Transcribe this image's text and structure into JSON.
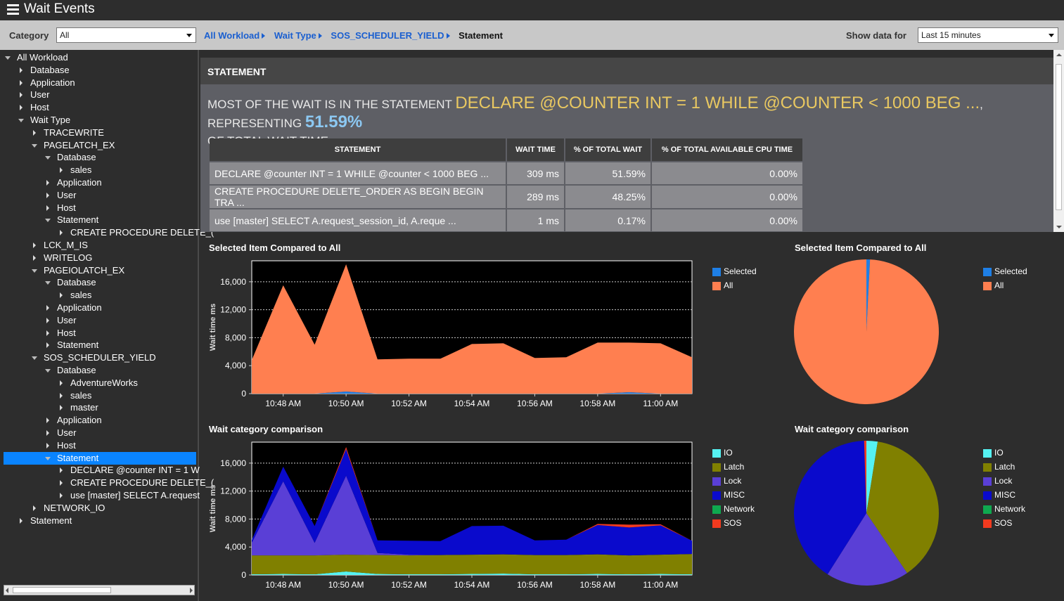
{
  "app": {
    "title": "Wait Events"
  },
  "toolbar": {
    "category_label": "Category",
    "category_value": "All",
    "show_data_label": "Show data for",
    "show_data_value": "Last 15 minutes"
  },
  "breadcrumb": {
    "items": [
      "All Workload",
      "Wait Type",
      "SOS_SCHEDULER_YIELD"
    ],
    "current": "Statement"
  },
  "tree": [
    {
      "label": "All Workload",
      "level": 0,
      "state": "expanded"
    },
    {
      "label": "Database",
      "level": 1,
      "state": "collapsed"
    },
    {
      "label": "Application",
      "level": 1,
      "state": "collapsed"
    },
    {
      "label": "User",
      "level": 1,
      "state": "collapsed"
    },
    {
      "label": "Host",
      "level": 1,
      "state": "collapsed"
    },
    {
      "label": "Wait Type",
      "level": 1,
      "state": "expanded"
    },
    {
      "label": "TRACEWRITE",
      "level": 2,
      "state": "collapsed"
    },
    {
      "label": "PAGELATCH_EX",
      "level": 2,
      "state": "expanded"
    },
    {
      "label": "Database",
      "level": 3,
      "state": "expanded"
    },
    {
      "label": "sales",
      "level": 4,
      "state": "collapsed"
    },
    {
      "label": "Application",
      "level": 3,
      "state": "collapsed"
    },
    {
      "label": "User",
      "level": 3,
      "state": "collapsed"
    },
    {
      "label": "Host",
      "level": 3,
      "state": "collapsed"
    },
    {
      "label": "Statement",
      "level": 3,
      "state": "expanded"
    },
    {
      "label": "CREATE PROCEDURE DELETE_(",
      "level": 4,
      "state": "collapsed"
    },
    {
      "label": "LCK_M_IS",
      "level": 2,
      "state": "collapsed"
    },
    {
      "label": "WRITELOG",
      "level": 2,
      "state": "collapsed"
    },
    {
      "label": "PAGEIOLATCH_EX",
      "level": 2,
      "state": "expanded"
    },
    {
      "label": "Database",
      "level": 3,
      "state": "expanded"
    },
    {
      "label": "sales",
      "level": 4,
      "state": "collapsed"
    },
    {
      "label": "Application",
      "level": 3,
      "state": "collapsed"
    },
    {
      "label": "User",
      "level": 3,
      "state": "collapsed"
    },
    {
      "label": "Host",
      "level": 3,
      "state": "collapsed"
    },
    {
      "label": "Statement",
      "level": 3,
      "state": "collapsed"
    },
    {
      "label": "SOS_SCHEDULER_YIELD",
      "level": 2,
      "state": "expanded"
    },
    {
      "label": "Database",
      "level": 3,
      "state": "expanded"
    },
    {
      "label": "AdventureWorks",
      "level": 4,
      "state": "collapsed"
    },
    {
      "label": "sales",
      "level": 4,
      "state": "collapsed"
    },
    {
      "label": "master",
      "level": 4,
      "state": "collapsed"
    },
    {
      "label": "Application",
      "level": 3,
      "state": "collapsed"
    },
    {
      "label": "User",
      "level": 3,
      "state": "collapsed"
    },
    {
      "label": "Host",
      "level": 3,
      "state": "collapsed"
    },
    {
      "label": "Statement",
      "level": 3,
      "state": "expanded",
      "selected": true
    },
    {
      "label": "DECLARE @counter INT = 1 W",
      "level": 4,
      "state": "collapsed"
    },
    {
      "label": "CREATE PROCEDURE DELETE_(",
      "level": 4,
      "state": "collapsed"
    },
    {
      "label": "use [master] SELECT  A.request",
      "level": 4,
      "state": "collapsed"
    },
    {
      "label": "NETWORK_IO",
      "level": 2,
      "state": "collapsed"
    },
    {
      "label": "Statement",
      "level": 1,
      "state": "collapsed"
    }
  ],
  "statement_panel": {
    "header": "STATEMENT",
    "summary_prefix": "MOST OF THE WAIT IS IN THE STATEMENT ",
    "summary_statement": "DECLARE @COUNTER INT = 1 WHILE @COUNTER < 1000 BEG ...",
    "summary_mid": ", REPRESENTING ",
    "summary_pct": "51.59%",
    "summary_suffix": "OF TOTAL WAIT TIME.",
    "columns": [
      "STATEMENT",
      "WAIT TIME",
      "% OF TOTAL WAIT",
      "% OF TOTAL AVAILABLE CPU TIME"
    ],
    "rows": [
      [
        "DECLARE @counter INT = 1 WHILE @counter < 1000 BEG ...",
        "309 ms",
        "51.59%",
        "0.00%"
      ],
      [
        "CREATE PROCEDURE DELETE_ORDER AS BEGIN BEGIN TRA ...",
        "289 ms",
        "48.25%",
        "0.00%"
      ],
      [
        "use [master] SELECT A.request_session_id, A.reque ...",
        "1 ms",
        "0.17%",
        "0.00%"
      ]
    ]
  },
  "colors": {
    "selected": "#1e7fe6",
    "all": "#ff7f50",
    "io": "#55f2f2",
    "latch": "#808000",
    "lock": "#5a3fd6",
    "misc": "#0a0acc",
    "network": "#0fa84f",
    "sos": "#f23a1f"
  },
  "chart_data": [
    {
      "type": "area",
      "title": "Selected Item Compared to All",
      "ylabel": "Wait time ms",
      "ylim": [
        0,
        19000
      ],
      "yticks": [
        "0",
        "4,000",
        "8,000",
        "12,000",
        "16,000"
      ],
      "ytick_values": [
        0,
        4000,
        8000,
        12000,
        16000
      ],
      "xticks": [
        "10:48 AM",
        "10:50 AM",
        "10:52 AM",
        "10:54 AM",
        "10:56 AM",
        "10:58 AM",
        "11:00 AM"
      ],
      "x": [
        0,
        1,
        2,
        3,
        4,
        5,
        6,
        7,
        8,
        9,
        10,
        11,
        12,
        13,
        14
      ],
      "series": [
        {
          "name": "Selected",
          "color": "#1e7fe6",
          "values": [
            0,
            0,
            0,
            300,
            0,
            0,
            0,
            0,
            0,
            0,
            0,
            0,
            200,
            0,
            0
          ]
        },
        {
          "name": "All",
          "color": "#ff7f50",
          "values": [
            4800,
            15500,
            7000,
            18200,
            4900,
            5000,
            5000,
            7100,
            7200,
            5100,
            5200,
            7300,
            7100,
            7200,
            5200
          ]
        }
      ],
      "legend": "right"
    },
    {
      "type": "pie",
      "title": "Selected Item Compared to All",
      "slices": [
        {
          "name": "Selected",
          "color": "#1e7fe6",
          "value": 0.8
        },
        {
          "name": "All",
          "color": "#ff7f50",
          "value": 99.2
        }
      ],
      "legend": "right"
    },
    {
      "type": "area",
      "title": "Wait category comparison",
      "ylabel": "Wait time ms",
      "ylim": [
        0,
        19000
      ],
      "yticks": [
        "0",
        "4,000",
        "8,000",
        "12,000",
        "16,000"
      ],
      "ytick_values": [
        0,
        4000,
        8000,
        12000,
        16000
      ],
      "xticks": [
        "10:48 AM",
        "10:50 AM",
        "10:52 AM",
        "10:54 AM",
        "10:56 AM",
        "10:58 AM",
        "11:00 AM"
      ],
      "x": [
        0,
        1,
        2,
        3,
        4,
        5,
        6,
        7,
        8,
        9,
        10,
        11,
        12,
        13,
        14
      ],
      "series": [
        {
          "name": "IO",
          "color": "#55f2f2",
          "values": [
            100,
            150,
            100,
            500,
            150,
            100,
            100,
            150,
            200,
            100,
            100,
            150,
            100,
            150,
            100
          ]
        },
        {
          "name": "Latch",
          "color": "#808000",
          "values": [
            2700,
            2650,
            2700,
            2400,
            2700,
            2700,
            2750,
            2750,
            2750,
            2750,
            2750,
            2800,
            2700,
            2750,
            2900
          ]
        },
        {
          "name": "Lock",
          "color": "#5a3fd6",
          "values": [
            1800,
            10600,
            1800,
            11300,
            300,
            100,
            0,
            0,
            0,
            0,
            0,
            0,
            0,
            0,
            0
          ]
        },
        {
          "name": "MISC",
          "color": "#0a0acc",
          "values": [
            400,
            2100,
            2400,
            3800,
            1800,
            2000,
            2000,
            4100,
            4100,
            2100,
            2200,
            4200,
            4000,
            4200,
            1900
          ]
        },
        {
          "name": "Network",
          "color": "#0fa84f",
          "values": [
            0,
            0,
            0,
            0,
            0,
            0,
            0,
            0,
            0,
            0,
            0,
            0,
            0,
            0,
            0
          ]
        },
        {
          "name": "SOS",
          "color": "#f23a1f",
          "values": [
            0,
            0,
            0,
            300,
            0,
            0,
            0,
            0,
            0,
            0,
            0,
            150,
            400,
            150,
            0
          ]
        }
      ],
      "legend": "right"
    },
    {
      "type": "pie",
      "title": "Wait category comparison",
      "slices": [
        {
          "name": "IO",
          "color": "#55f2f2",
          "value": 2.5
        },
        {
          "name": "Latch",
          "color": "#808000",
          "value": 38
        },
        {
          "name": "Lock",
          "color": "#5a3fd6",
          "value": 18.5
        },
        {
          "name": "MISC",
          "color": "#0a0acc",
          "value": 40.5
        },
        {
          "name": "Network",
          "color": "#0fa84f",
          "value": 0
        },
        {
          "name": "SOS",
          "color": "#f23a1f",
          "value": 0.5
        }
      ],
      "legend": "right"
    }
  ]
}
